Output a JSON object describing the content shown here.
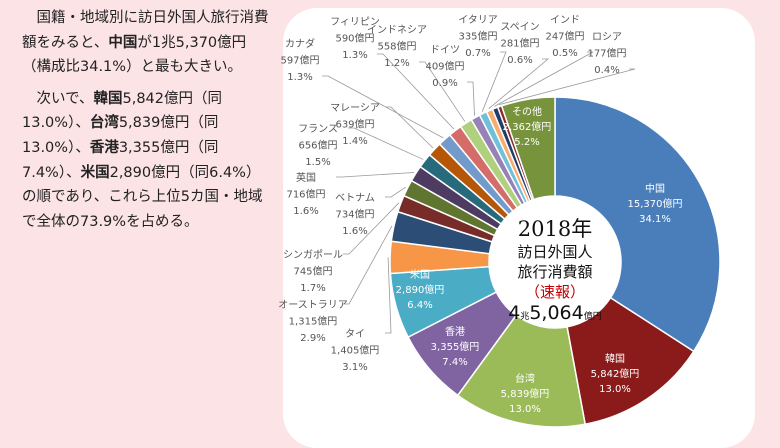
{
  "left_text": {
    "p1": [
      "国籍・地域別に訪日外国人旅行消費額をみると、",
      "中国",
      "が1兆5,370億円（構成比34.1%）と最も大きい。"
    ],
    "p2": [
      "次いで、",
      "韓国",
      "5,842億円（同13.0%）、",
      "台湾",
      "5,839億円（同13.0%）、",
      "香港",
      "3,355億円（同7.4%）、",
      "米国",
      "2,890億円（同6.4%）の順であり、これら上位5カ国・地域で全体の73.9%を占める。"
    ]
  },
  "chart_data": {
    "type": "pie",
    "donut": true,
    "center_text": {
      "year": "2018年",
      "line1": "訪日外国人",
      "line2": "旅行消費額",
      "line3": "（速報）",
      "total_num1": "4",
      "total_unit1": "兆",
      "total_num2": "5,064",
      "total_unit2": "億円"
    },
    "slices": [
      {
        "name": "中国",
        "value": "15,370億円",
        "amount": 15370,
        "percent": "34.1%",
        "color": "#4a7ebb"
      },
      {
        "name": "韓国",
        "value": "5,842億円",
        "amount": 5842,
        "percent": "13.0%",
        "color": "#8b1a1a"
      },
      {
        "name": "台湾",
        "value": "5,839億円",
        "amount": 5839,
        "percent": "13.0%",
        "color": "#9bbb59"
      },
      {
        "name": "香港",
        "value": "3,355億円",
        "amount": 3355,
        "percent": "7.4%",
        "color": "#8064a2"
      },
      {
        "name": "米国",
        "value": "2,890億円",
        "amount": 2890,
        "percent": "6.4%",
        "color": "#4bacc6"
      },
      {
        "name": "タイ",
        "value": "1,405億円",
        "amount": 1405,
        "percent": "3.1%",
        "color": "#f79646"
      },
      {
        "name": "オーストラリア",
        "value": "1,315億円",
        "amount": 1315,
        "percent": "2.9%",
        "color": "#2c4d75"
      },
      {
        "name": "シンガポール",
        "value": "745億円",
        "amount": 745,
        "percent": "1.7%",
        "color": "#772c2a"
      },
      {
        "name": "ベトナム",
        "value": "734億円",
        "amount": 734,
        "percent": "1.6%",
        "color": "#5f7530"
      },
      {
        "name": "英国",
        "value": "716億円",
        "amount": 716,
        "percent": "1.6%",
        "color": "#4d3b62"
      },
      {
        "name": "フランス",
        "value": "656億円",
        "amount": 656,
        "percent": "1.5%",
        "color": "#276a7c"
      },
      {
        "name": "マレーシア",
        "value": "639億円",
        "amount": 639,
        "percent": "1.4%",
        "color": "#b65708"
      },
      {
        "name": "カナダ",
        "value": "597億円",
        "amount": 597,
        "percent": "1.3%",
        "color": "#729aca"
      },
      {
        "name": "フィリピン",
        "value": "590億円",
        "amount": 590,
        "percent": "1.3%",
        "color": "#d46d6a"
      },
      {
        "name": "インドネシア",
        "value": "558億円",
        "amount": 558,
        "percent": "1.2%",
        "color": "#afd07c"
      },
      {
        "name": "ドイツ",
        "value": "409億円",
        "amount": 409,
        "percent": "0.9%",
        "color": "#9782b8"
      },
      {
        "name": "イタリア",
        "value": "335億円",
        "amount": 335,
        "percent": "0.7%",
        "color": "#6fc0d8"
      },
      {
        "name": "スペイン",
        "value": "281億円",
        "amount": 281,
        "percent": "0.6%",
        "color": "#f9ab6f"
      },
      {
        "name": "インド",
        "value": "247億円",
        "amount": 247,
        "percent": "0.5%",
        "color": "#1f3f6a"
      },
      {
        "name": "ロシア",
        "value": "177億円",
        "amount": 177,
        "percent": "0.4%",
        "color": "#8c2a2a"
      },
      {
        "name": "その他",
        "value": "2,362億円",
        "amount": 2362,
        "percent": "5.2%",
        "color": "#77933c"
      }
    ]
  }
}
